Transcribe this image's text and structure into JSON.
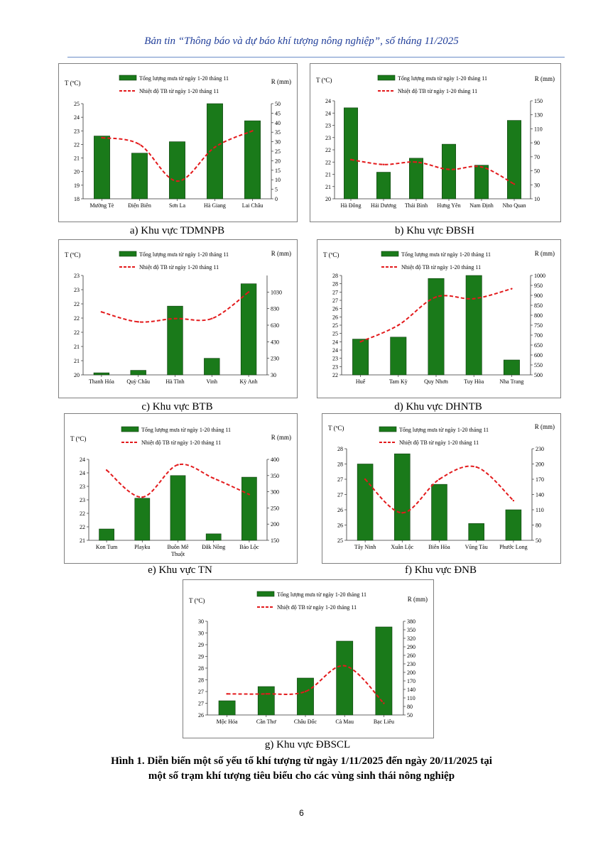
{
  "header": {
    "title": "Bản tin “Thông báo và dự báo khí tượng nông nghiệp”, số tháng 11/2025"
  },
  "legend": {
    "rain": "Tổng lượng mưa từ ngày 1-20 tháng 11",
    "temp": "Nhiệt độ TB từ ngày 1-20 tháng 11"
  },
  "axis_labels": {
    "temp": "T (ºC)",
    "rain": "R (mm)"
  },
  "colors": {
    "bar": "#1a7a1a",
    "bar_edge": "#0d3d0d",
    "line": "#e31a1c",
    "frame": "#7f7f7f"
  },
  "chart_data": [
    {
      "id": "a",
      "type": "bar+line",
      "caption": "a)   Khu vực TDMNPB",
      "categories": [
        "Mường Tè",
        "Điện Biên",
        "Sơn La",
        "Hà Giang",
        "Lai Châu"
      ],
      "rain_mm": [
        33,
        24,
        30,
        50,
        41
      ],
      "temp_c": [
        22.5,
        22.0,
        19.3,
        21.8,
        23.0
      ],
      "temp_axis": {
        "min": 18,
        "max": 25,
        "ticks": [
          "18",
          "19",
          "20",
          "21",
          "22",
          "23",
          "24",
          "25"
        ]
      },
      "rain_axis": {
        "min": 0,
        "max": 50,
        "ticks": [
          "0",
          "5",
          "10",
          "15",
          "20",
          "25",
          "30",
          "35",
          "40",
          "45",
          "50"
        ]
      }
    },
    {
      "id": "b",
      "type": "bar+line",
      "caption": "b)   Khu vực ĐBSH",
      "categories": [
        "Hà Đông",
        "Hải Dương",
        "Thái Bình",
        "Hưng Yên",
        "Nam Định",
        "Nho Quan"
      ],
      "rain_mm": [
        140,
        48,
        68,
        88,
        58,
        122
      ],
      "temp_c": [
        21.6,
        21.4,
        21.5,
        21.2,
        21.3,
        20.6
      ],
      "temp_axis": {
        "min": 20,
        "max": 24,
        "ticks": [
          "20",
          "21",
          "21",
          "22",
          "22",
          "23",
          "23",
          "24",
          "24"
        ]
      },
      "rain_axis": {
        "min": 10,
        "max": 150,
        "ticks": [
          "10",
          "30",
          "50",
          "70",
          "90",
          "110",
          "130",
          "150"
        ]
      }
    },
    {
      "id": "c",
      "type": "bar+line",
      "caption": "c)   Khu vực BTB",
      "categories": [
        "Thanh Hóa",
        "Quỳ Châu",
        "Hà Tĩnh",
        "Vinh",
        "Kỳ Anh"
      ],
      "rain_mm": [
        55,
        85,
        860,
        230,
        1130
      ],
      "temp_c": [
        21.9,
        21.6,
        21.7,
        21.7,
        22.5
      ],
      "temp_axis": {
        "min": 20,
        "max": 23,
        "ticks": [
          "20",
          "21",
          "21",
          "22",
          "22",
          "22",
          "23",
          "23"
        ]
      },
      "rain_axis": {
        "min": 30,
        "max": 1230,
        "ticks": [
          "30",
          "230",
          "430",
          "630",
          "830",
          "1030"
        ]
      }
    },
    {
      "id": "d",
      "type": "bar+line",
      "caption": "d)   Khu vực DHNTB",
      "categories": [
        "Huế",
        "Tam Kỳ",
        "Quy Nhơn",
        "Tuy Hòa",
        "Nha Trang"
      ],
      "rain_mm": [
        680,
        690,
        985,
        1000,
        575
      ],
      "temp_c": [
        24.0,
        25.0,
        26.7,
        26.6,
        27.2
      ],
      "temp_axis": {
        "min": 22,
        "max": 28,
        "ticks": [
          "22",
          "23",
          "23",
          "24",
          "24",
          "25",
          "25",
          "26",
          "26",
          "27",
          "27",
          "28",
          "28"
        ]
      },
      "rain_axis": {
        "min": 500,
        "max": 1000,
        "ticks": [
          "500",
          "550",
          "600",
          "650",
          "700",
          "750",
          "800",
          "850",
          "900",
          "950",
          "1000"
        ]
      }
    },
    {
      "id": "e",
      "type": "bar+line",
      "caption": "e)   Khu vực TN",
      "categories": [
        "Kon Tum",
        "Playku",
        "Buôn Mê Thuột",
        "Đắk Nông",
        "Bảo Lộc"
      ],
      "rain_mm": [
        185,
        280,
        350,
        170,
        345
      ],
      "temp_c": [
        23.6,
        22.6,
        23.8,
        23.3,
        22.7
      ],
      "temp_axis": {
        "min": 21,
        "max": 24,
        "ticks": [
          "21",
          "22",
          "22",
          "23",
          "23",
          "24",
          "24"
        ]
      },
      "rain_axis": {
        "min": 150,
        "max": 400,
        "ticks": [
          "150",
          "200",
          "250",
          "300",
          "350",
          "400"
        ]
      }
    },
    {
      "id": "f",
      "type": "bar+line",
      "caption": "f)   Khu vực ĐNB",
      "categories": [
        "Tây Ninh",
        "Xuân Lộc",
        "Biên Hòa",
        "Vũng Tàu",
        "Phước Long"
      ],
      "rain_mm": [
        200,
        220,
        160,
        83,
        110
      ],
      "temp_c": [
        27.0,
        25.9,
        27.0,
        27.4,
        26.3
      ],
      "temp_axis": {
        "min": 25,
        "max": 28,
        "ticks": [
          "25",
          "26",
          "26",
          "27",
          "27",
          "28",
          "28"
        ]
      },
      "rain_axis": {
        "min": 50,
        "max": 230,
        "ticks": [
          "50",
          "80",
          "110",
          "140",
          "170",
          "200",
          "230"
        ]
      }
    },
    {
      "id": "g",
      "type": "bar+line",
      "caption": "g)   Khu vực ĐBSCL",
      "categories": [
        "Mộc Hóa",
        "Cần Thơ",
        "Châu Đốc",
        "Cà Mau",
        "Bạc Liêu"
      ],
      "rain_mm": [
        100,
        150,
        180,
        310,
        360
      ],
      "temp_c": [
        26.9,
        26.9,
        27.0,
        28.1,
        26.5
      ],
      "temp_axis": {
        "min": 26,
        "max": 30,
        "ticks": [
          "26",
          "27",
          "27",
          "28",
          "28",
          "29",
          "29",
          "30",
          "30"
        ]
      },
      "rain_axis": {
        "min": 50,
        "max": 380,
        "ticks": [
          "50",
          "80",
          "110",
          "140",
          "170",
          "200",
          "230",
          "260",
          "290",
          "320",
          "350",
          "380"
        ]
      }
    }
  ],
  "figure_caption": {
    "line1": "Hình 1. Diễn biến một số yếu tố khí tượng từ ngày 1/11/2025 đến ngày 20/11/2025 tại",
    "line2": "một số trạm khí tượng tiêu biểu cho các vùng sinh thái nông nghiệp"
  },
  "page_number": "6"
}
